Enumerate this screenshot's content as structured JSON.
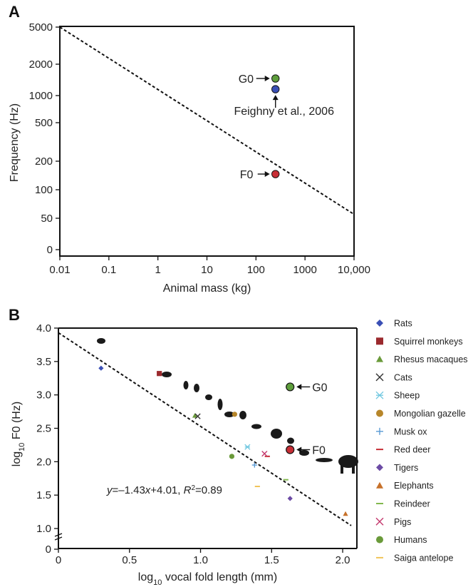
{
  "chart_data": [
    {
      "panel": "A",
      "type": "scatter",
      "xlabel": "Animal mass (kg)",
      "ylabel": "Frequency (Hz)",
      "x_scale": "log",
      "y_scale": "log",
      "xlim": [
        0.01,
        10000
      ],
      "ylim": [
        0,
        5000
      ],
      "x_ticks": [
        {
          "value": 0.01,
          "label": "0.01"
        },
        {
          "value": 0.1,
          "label": "0.1"
        },
        {
          "value": 1,
          "label": "1"
        },
        {
          "value": 10,
          "label": "10"
        },
        {
          "value": 100,
          "label": "100"
        },
        {
          "value": 1000,
          "label": "1000"
        },
        {
          "value": 10000,
          "label": "10,000"
        }
      ],
      "y_ticks": [
        {
          "value": 0,
          "label": "0"
        },
        {
          "value": 50,
          "label": "50"
        },
        {
          "value": 100,
          "label": "100"
        },
        {
          "value": 200,
          "label": "200"
        },
        {
          "value": 500,
          "label": "500"
        },
        {
          "value": 1000,
          "label": "1000"
        },
        {
          "value": 2000,
          "label": "2000"
        },
        {
          "value": 5000,
          "label": "5000"
        }
      ],
      "trend_line": {
        "style": "dashed",
        "from": [
          0.01,
          5000
        ],
        "to": [
          10000,
          55
        ]
      },
      "points": [
        {
          "label": "G0",
          "x": 250,
          "y": 1450,
          "color": "#5e9e3c"
        },
        {
          "label": "Feighny et al., 2006",
          "x": 250,
          "y": 1120,
          "color": "#3a4fb5"
        },
        {
          "label": "F0",
          "x": 250,
          "y": 145,
          "color": "#c72e35"
        }
      ],
      "grid": false
    },
    {
      "panel": "B",
      "type": "scatter",
      "xlabel": "log",
      "xlabel_sub": "10",
      "xlabel_rest": " vocal fold length (mm)",
      "ylabel": "log",
      "ylabel_sub": "10",
      "ylabel_rest": " F0 (Hz)",
      "xlim": [
        0,
        2.1
      ],
      "ylim": [
        0,
        4.0
      ],
      "x_ticks": [
        {
          "value": 0,
          "label": "0"
        },
        {
          "value": 0.5,
          "label": "0.5"
        },
        {
          "value": 1.0,
          "label": "1.0"
        },
        {
          "value": 1.5,
          "label": "1.5"
        },
        {
          "value": 2.0,
          "label": "2.0"
        }
      ],
      "y_ticks": [
        {
          "value": 0,
          "label": "0"
        },
        {
          "value": 1.0,
          "label": "1.0"
        },
        {
          "value": 1.5,
          "label": "1.5"
        },
        {
          "value": 2.0,
          "label": "2.0"
        },
        {
          "value": 2.5,
          "label": "2.5"
        },
        {
          "value": 3.0,
          "label": "3.0"
        },
        {
          "value": 3.5,
          "label": "3.5"
        },
        {
          "value": 4.0,
          "label": "4.0"
        }
      ],
      "regression": {
        "slope": -1.43,
        "intercept": 4.01,
        "style": "dashed"
      },
      "equation": {
        "y": "y",
        "rhs": "=–1.43",
        "x": "x",
        "rhs2": "+4.01, ",
        "r": "R",
        "sup": "2",
        "val": "=0.89"
      },
      "annotations": [
        {
          "label": "G0",
          "x": 1.63,
          "y": 3.12,
          "color": "#5e9e3c"
        },
        {
          "label": "F0",
          "x": 1.63,
          "y": 2.18,
          "color": "#c72e35"
        }
      ],
      "series": [
        {
          "name": "Rats",
          "marker": "diamond",
          "color": "#3a4fb5",
          "x": [
            0.3
          ],
          "y": [
            3.4
          ]
        },
        {
          "name": "Squirrel monkeys",
          "marker": "square",
          "color": "#9b2a2e",
          "x": [
            0.71
          ],
          "y": [
            3.32
          ]
        },
        {
          "name": "Rhesus macaques",
          "marker": "triangle",
          "color": "#6a9a3a",
          "x": [
            0.96
          ],
          "y": [
            2.69
          ]
        },
        {
          "name": "Cats",
          "marker": "x",
          "color": "#333333",
          "x": [
            0.98
          ],
          "y": [
            2.68
          ]
        },
        {
          "name": "Sheep",
          "marker": "star",
          "color": "#6fc7e0",
          "x": [
            1.33
          ],
          "y": [
            2.22
          ]
        },
        {
          "name": "Mongolian gazelle",
          "marker": "circle",
          "color": "#b7862a",
          "x": [
            1.24
          ],
          "y": [
            2.71
          ]
        },
        {
          "name": "Musk ox",
          "marker": "plus",
          "color": "#5b9bd5",
          "x": [
            1.38
          ],
          "y": [
            1.95
          ]
        },
        {
          "name": "Red deer",
          "marker": "dash",
          "color": "#c72e35",
          "x": [
            1.47
          ],
          "y": [
            2.08
          ]
        },
        {
          "name": "Tigers",
          "marker": "diamond",
          "color": "#6c4ba5",
          "x": [
            1.63
          ],
          "y": [
            1.45
          ]
        },
        {
          "name": "Elephants",
          "marker": "triangle",
          "color": "#c7712a",
          "x": [
            2.02
          ],
          "y": [
            1.22
          ]
        },
        {
          "name": "Reindeer",
          "marker": "dash",
          "color": "#82b84e",
          "x": [
            1.6
          ],
          "y": [
            1.73
          ]
        },
        {
          "name": "Pigs",
          "marker": "x",
          "color": "#c43a6e",
          "x": [
            1.45
          ],
          "y": [
            2.12
          ]
        },
        {
          "name": "Humans",
          "marker": "circle",
          "color": "#6a9a3a",
          "x": [
            1.22
          ],
          "y": [
            2.08
          ]
        },
        {
          "name": "Saiga antelope",
          "marker": "dash",
          "color": "#f0c45a",
          "x": [
            1.4
          ],
          "y": [
            1.63
          ]
        }
      ],
      "legend_position": "right",
      "grid": false
    }
  ]
}
